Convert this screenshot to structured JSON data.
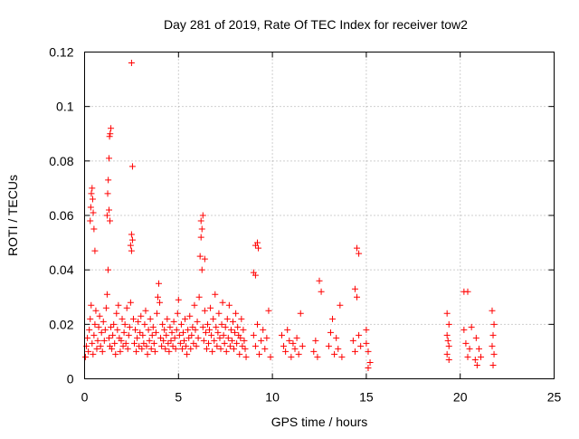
{
  "chart_data": {
    "type": "scatter",
    "title": "Day 281 of 2019, Rate Of TEC Index for receiver tow2",
    "xlabel": "GPS time / hours",
    "ylabel": "ROTI / TECUs",
    "xlim": [
      0,
      25
    ],
    "ylim": [
      0,
      0.12
    ],
    "x_ticks": [
      0,
      5,
      10,
      15,
      20,
      25
    ],
    "y_ticks": [
      0,
      0.02,
      0.04,
      0.06,
      0.08,
      0.1,
      0.12
    ],
    "x_tick_labels": [
      "0",
      "5",
      "10",
      "15",
      "20",
      "25"
    ],
    "y_tick_labels": [
      "0",
      "0.02",
      "0.04",
      "0.06",
      "0.08",
      "0.1",
      "0.12"
    ],
    "grid": true,
    "marker": "+",
    "color": "#ff0000",
    "series": [
      {
        "name": "ROTI",
        "points": [
          [
            0.05,
            0.008
          ],
          [
            0.1,
            0.012
          ],
          [
            0.15,
            0.015
          ],
          [
            0.2,
            0.01
          ],
          [
            0.25,
            0.018
          ],
          [
            0.3,
            0.022
          ],
          [
            0.35,
            0.027
          ],
          [
            0.4,
            0.013
          ],
          [
            0.45,
            0.009
          ],
          [
            0.5,
            0.016
          ],
          [
            0.55,
            0.02
          ],
          [
            0.6,
            0.025
          ],
          [
            0.65,
            0.011
          ],
          [
            0.7,
            0.014
          ],
          [
            0.75,
            0.019
          ],
          [
            0.8,
            0.023
          ],
          [
            0.85,
            0.012
          ],
          [
            0.9,
            0.017
          ],
          [
            0.95,
            0.01
          ],
          [
            1.0,
            0.021
          ],
          [
            1.05,
            0.014
          ],
          [
            1.1,
            0.018
          ],
          [
            1.15,
            0.026
          ],
          [
            1.2,
            0.031
          ],
          [
            1.25,
            0.04
          ],
          [
            1.3,
            0.015
          ],
          [
            1.35,
            0.012
          ],
          [
            1.4,
            0.019
          ],
          [
            1.45,
            0.011
          ],
          [
            1.5,
            0.016
          ],
          [
            1.55,
            0.02
          ],
          [
            1.6,
            0.013
          ],
          [
            1.65,
            0.009
          ],
          [
            1.7,
            0.024
          ],
          [
            1.75,
            0.018
          ],
          [
            1.8,
            0.027
          ],
          [
            1.85,
            0.015
          ],
          [
            1.9,
            0.01
          ],
          [
            1.95,
            0.014
          ],
          [
            2.0,
            0.022
          ],
          [
            2.05,
            0.012
          ],
          [
            2.1,
            0.017
          ],
          [
            2.15,
            0.02
          ],
          [
            2.2,
            0.013
          ],
          [
            2.25,
            0.026
          ],
          [
            2.3,
            0.011
          ],
          [
            2.35,
            0.016
          ],
          [
            2.4,
            0.019
          ],
          [
            2.45,
            0.028
          ],
          [
            2.5,
            0.047
          ],
          [
            2.55,
            0.051
          ],
          [
            2.6,
            0.022
          ],
          [
            2.65,
            0.013
          ],
          [
            2.7,
            0.018
          ],
          [
            2.75,
            0.01
          ],
          [
            2.8,
            0.015
          ],
          [
            2.85,
            0.021
          ],
          [
            2.9,
            0.012
          ],
          [
            2.95,
            0.017
          ],
          [
            3.0,
            0.023
          ],
          [
            3.05,
            0.011
          ],
          [
            3.1,
            0.016
          ],
          [
            3.15,
            0.013
          ],
          [
            3.2,
            0.02
          ],
          [
            3.25,
            0.025
          ],
          [
            3.3,
            0.012
          ],
          [
            3.35,
            0.009
          ],
          [
            3.4,
            0.018
          ],
          [
            3.45,
            0.014
          ],
          [
            3.5,
            0.022
          ],
          [
            3.55,
            0.011
          ],
          [
            3.6,
            0.016
          ],
          [
            3.65,
            0.019
          ],
          [
            3.7,
            0.013
          ],
          [
            3.75,
            0.01
          ],
          [
            3.8,
            0.017
          ],
          [
            3.85,
            0.024
          ],
          [
            3.9,
            0.03
          ],
          [
            3.95,
            0.035
          ],
          [
            4.0,
            0.028
          ],
          [
            4.05,
            0.015
          ],
          [
            4.1,
            0.012
          ],
          [
            4.15,
            0.02
          ],
          [
            4.2,
            0.014
          ],
          [
            4.25,
            0.018
          ],
          [
            4.3,
            0.011
          ],
          [
            4.35,
            0.016
          ],
          [
            4.4,
            0.022
          ],
          [
            4.45,
            0.013
          ],
          [
            4.5,
            0.01
          ],
          [
            4.55,
            0.019
          ],
          [
            4.6,
            0.014
          ],
          [
            4.65,
            0.017
          ],
          [
            4.7,
            0.012
          ],
          [
            4.75,
            0.021
          ],
          [
            4.8,
            0.015
          ],
          [
            4.85,
            0.011
          ],
          [
            4.9,
            0.018
          ],
          [
            4.95,
            0.024
          ],
          [
            5.0,
            0.029
          ],
          [
            5.05,
            0.016
          ],
          [
            5.1,
            0.013
          ],
          [
            5.15,
            0.02
          ],
          [
            5.2,
            0.011
          ],
          [
            5.25,
            0.017
          ],
          [
            5.3,
            0.014
          ],
          [
            5.35,
            0.022
          ],
          [
            5.4,
            0.012
          ],
          [
            5.45,
            0.009
          ],
          [
            5.5,
            0.018
          ],
          [
            5.55,
            0.015
          ],
          [
            5.6,
            0.023
          ],
          [
            5.65,
            0.011
          ],
          [
            5.7,
            0.016
          ],
          [
            5.75,
            0.019
          ],
          [
            5.8,
            0.013
          ],
          [
            5.85,
            0.027
          ],
          [
            5.9,
            0.018
          ],
          [
            5.95,
            0.012
          ],
          [
            6.0,
            0.021
          ],
          [
            6.05,
            0.015
          ],
          [
            6.1,
            0.03
          ],
          [
            6.15,
            0.045
          ],
          [
            6.2,
            0.052
          ],
          [
            6.25,
            0.04
          ],
          [
            6.3,
            0.019
          ],
          [
            6.35,
            0.014
          ],
          [
            6.4,
            0.025
          ],
          [
            6.45,
            0.017
          ],
          [
            6.5,
            0.011
          ],
          [
            6.55,
            0.02
          ],
          [
            6.6,
            0.013
          ],
          [
            6.65,
            0.018
          ],
          [
            6.7,
            0.026
          ],
          [
            6.75,
            0.016
          ],
          [
            6.8,
            0.01
          ],
          [
            6.85,
            0.022
          ],
          [
            6.9,
            0.014
          ],
          [
            6.95,
            0.031
          ],
          [
            7.0,
            0.019
          ],
          [
            7.05,
            0.012
          ],
          [
            7.1,
            0.017
          ],
          [
            7.15,
            0.024
          ],
          [
            7.2,
            0.015
          ],
          [
            7.25,
            0.011
          ],
          [
            7.3,
            0.02
          ],
          [
            7.35,
            0.028
          ],
          [
            7.4,
            0.016
          ],
          [
            7.45,
            0.013
          ],
          [
            7.5,
            0.019
          ],
          [
            7.55,
            0.01
          ],
          [
            7.6,
            0.022
          ],
          [
            7.65,
            0.015
          ],
          [
            7.7,
            0.027
          ],
          [
            7.75,
            0.012
          ],
          [
            7.8,
            0.018
          ],
          [
            7.85,
            0.014
          ],
          [
            7.9,
            0.021
          ],
          [
            7.95,
            0.011
          ],
          [
            8.0,
            0.017
          ],
          [
            8.05,
            0.024
          ],
          [
            8.1,
            0.013
          ],
          [
            8.15,
            0.019
          ],
          [
            8.2,
            0.016
          ],
          [
            8.25,
            0.009
          ],
          [
            8.3,
            0.015
          ],
          [
            8.35,
            0.022
          ],
          [
            8.4,
            0.012
          ],
          [
            8.45,
            0.018
          ],
          [
            8.5,
            0.014
          ],
          [
            8.55,
            0.011
          ],
          [
            8.6,
            0.008
          ],
          [
            0.3,
            0.058
          ],
          [
            0.33,
            0.063
          ],
          [
            0.36,
            0.068
          ],
          [
            0.4,
            0.07
          ],
          [
            0.43,
            0.066
          ],
          [
            0.46,
            0.061
          ],
          [
            0.5,
            0.055
          ],
          [
            0.55,
            0.047
          ],
          [
            1.2,
            0.06
          ],
          [
            1.23,
            0.068
          ],
          [
            1.26,
            0.073
          ],
          [
            1.3,
            0.081
          ],
          [
            1.33,
            0.089
          ],
          [
            1.36,
            0.09
          ],
          [
            1.4,
            0.092
          ],
          [
            1.3,
            0.062
          ],
          [
            1.35,
            0.058
          ],
          [
            2.5,
            0.116
          ],
          [
            2.55,
            0.078
          ],
          [
            2.5,
            0.053
          ],
          [
            2.45,
            0.049
          ],
          [
            6.2,
            0.058
          ],
          [
            6.3,
            0.06
          ],
          [
            6.25,
            0.055
          ],
          [
            6.4,
            0.044
          ],
          [
            9.1,
            0.049
          ],
          [
            9.2,
            0.05
          ],
          [
            9.25,
            0.048
          ],
          [
            9.0,
            0.039
          ],
          [
            9.1,
            0.038
          ],
          [
            9.0,
            0.016
          ],
          [
            9.1,
            0.012
          ],
          [
            9.2,
            0.02
          ],
          [
            9.3,
            0.009
          ],
          [
            9.4,
            0.014
          ],
          [
            9.5,
            0.018
          ],
          [
            9.6,
            0.011
          ],
          [
            9.7,
            0.015
          ],
          [
            9.8,
            0.025
          ],
          [
            9.9,
            0.008
          ],
          [
            10.5,
            0.016
          ],
          [
            10.6,
            0.012
          ],
          [
            10.7,
            0.01
          ],
          [
            10.8,
            0.018
          ],
          [
            10.9,
            0.014
          ],
          [
            11.0,
            0.008
          ],
          [
            11.1,
            0.013
          ],
          [
            11.2,
            0.011
          ],
          [
            11.3,
            0.015
          ],
          [
            11.4,
            0.009
          ],
          [
            11.5,
            0.024
          ],
          [
            11.6,
            0.012
          ],
          [
            12.2,
            0.01
          ],
          [
            12.3,
            0.014
          ],
          [
            12.4,
            0.008
          ],
          [
            12.5,
            0.036
          ],
          [
            12.6,
            0.032
          ],
          [
            13.0,
            0.012
          ],
          [
            13.1,
            0.017
          ],
          [
            13.2,
            0.022
          ],
          [
            13.3,
            0.009
          ],
          [
            13.4,
            0.015
          ],
          [
            13.5,
            0.011
          ],
          [
            13.6,
            0.027
          ],
          [
            13.7,
            0.008
          ],
          [
            14.3,
            0.014
          ],
          [
            14.4,
            0.01
          ],
          [
            14.5,
            0.048
          ],
          [
            14.6,
            0.046
          ],
          [
            14.4,
            0.033
          ],
          [
            14.5,
            0.03
          ],
          [
            14.6,
            0.016
          ],
          [
            14.7,
            0.012
          ],
          [
            15.0,
            0.018
          ],
          [
            15.1,
            0.01
          ],
          [
            15.2,
            0.006
          ],
          [
            15.0,
            0.013
          ],
          [
            15.1,
            0.004
          ],
          [
            19.3,
            0.024
          ],
          [
            19.4,
            0.02
          ],
          [
            19.3,
            0.016
          ],
          [
            19.4,
            0.012
          ],
          [
            19.3,
            0.009
          ],
          [
            19.4,
            0.007
          ],
          [
            19.35,
            0.014
          ],
          [
            20.2,
            0.032
          ],
          [
            20.4,
            0.032
          ],
          [
            20.2,
            0.018
          ],
          [
            20.3,
            0.013
          ],
          [
            20.5,
            0.011
          ],
          [
            20.4,
            0.008
          ],
          [
            20.6,
            0.019
          ],
          [
            20.8,
            0.007
          ],
          [
            20.9,
            0.005
          ],
          [
            21.0,
            0.011
          ],
          [
            21.1,
            0.008
          ],
          [
            20.85,
            0.015
          ],
          [
            21.7,
            0.025
          ],
          [
            21.8,
            0.02
          ],
          [
            21.75,
            0.016
          ],
          [
            21.7,
            0.012
          ],
          [
            21.8,
            0.009
          ],
          [
            21.75,
            0.005
          ]
        ]
      }
    ]
  }
}
